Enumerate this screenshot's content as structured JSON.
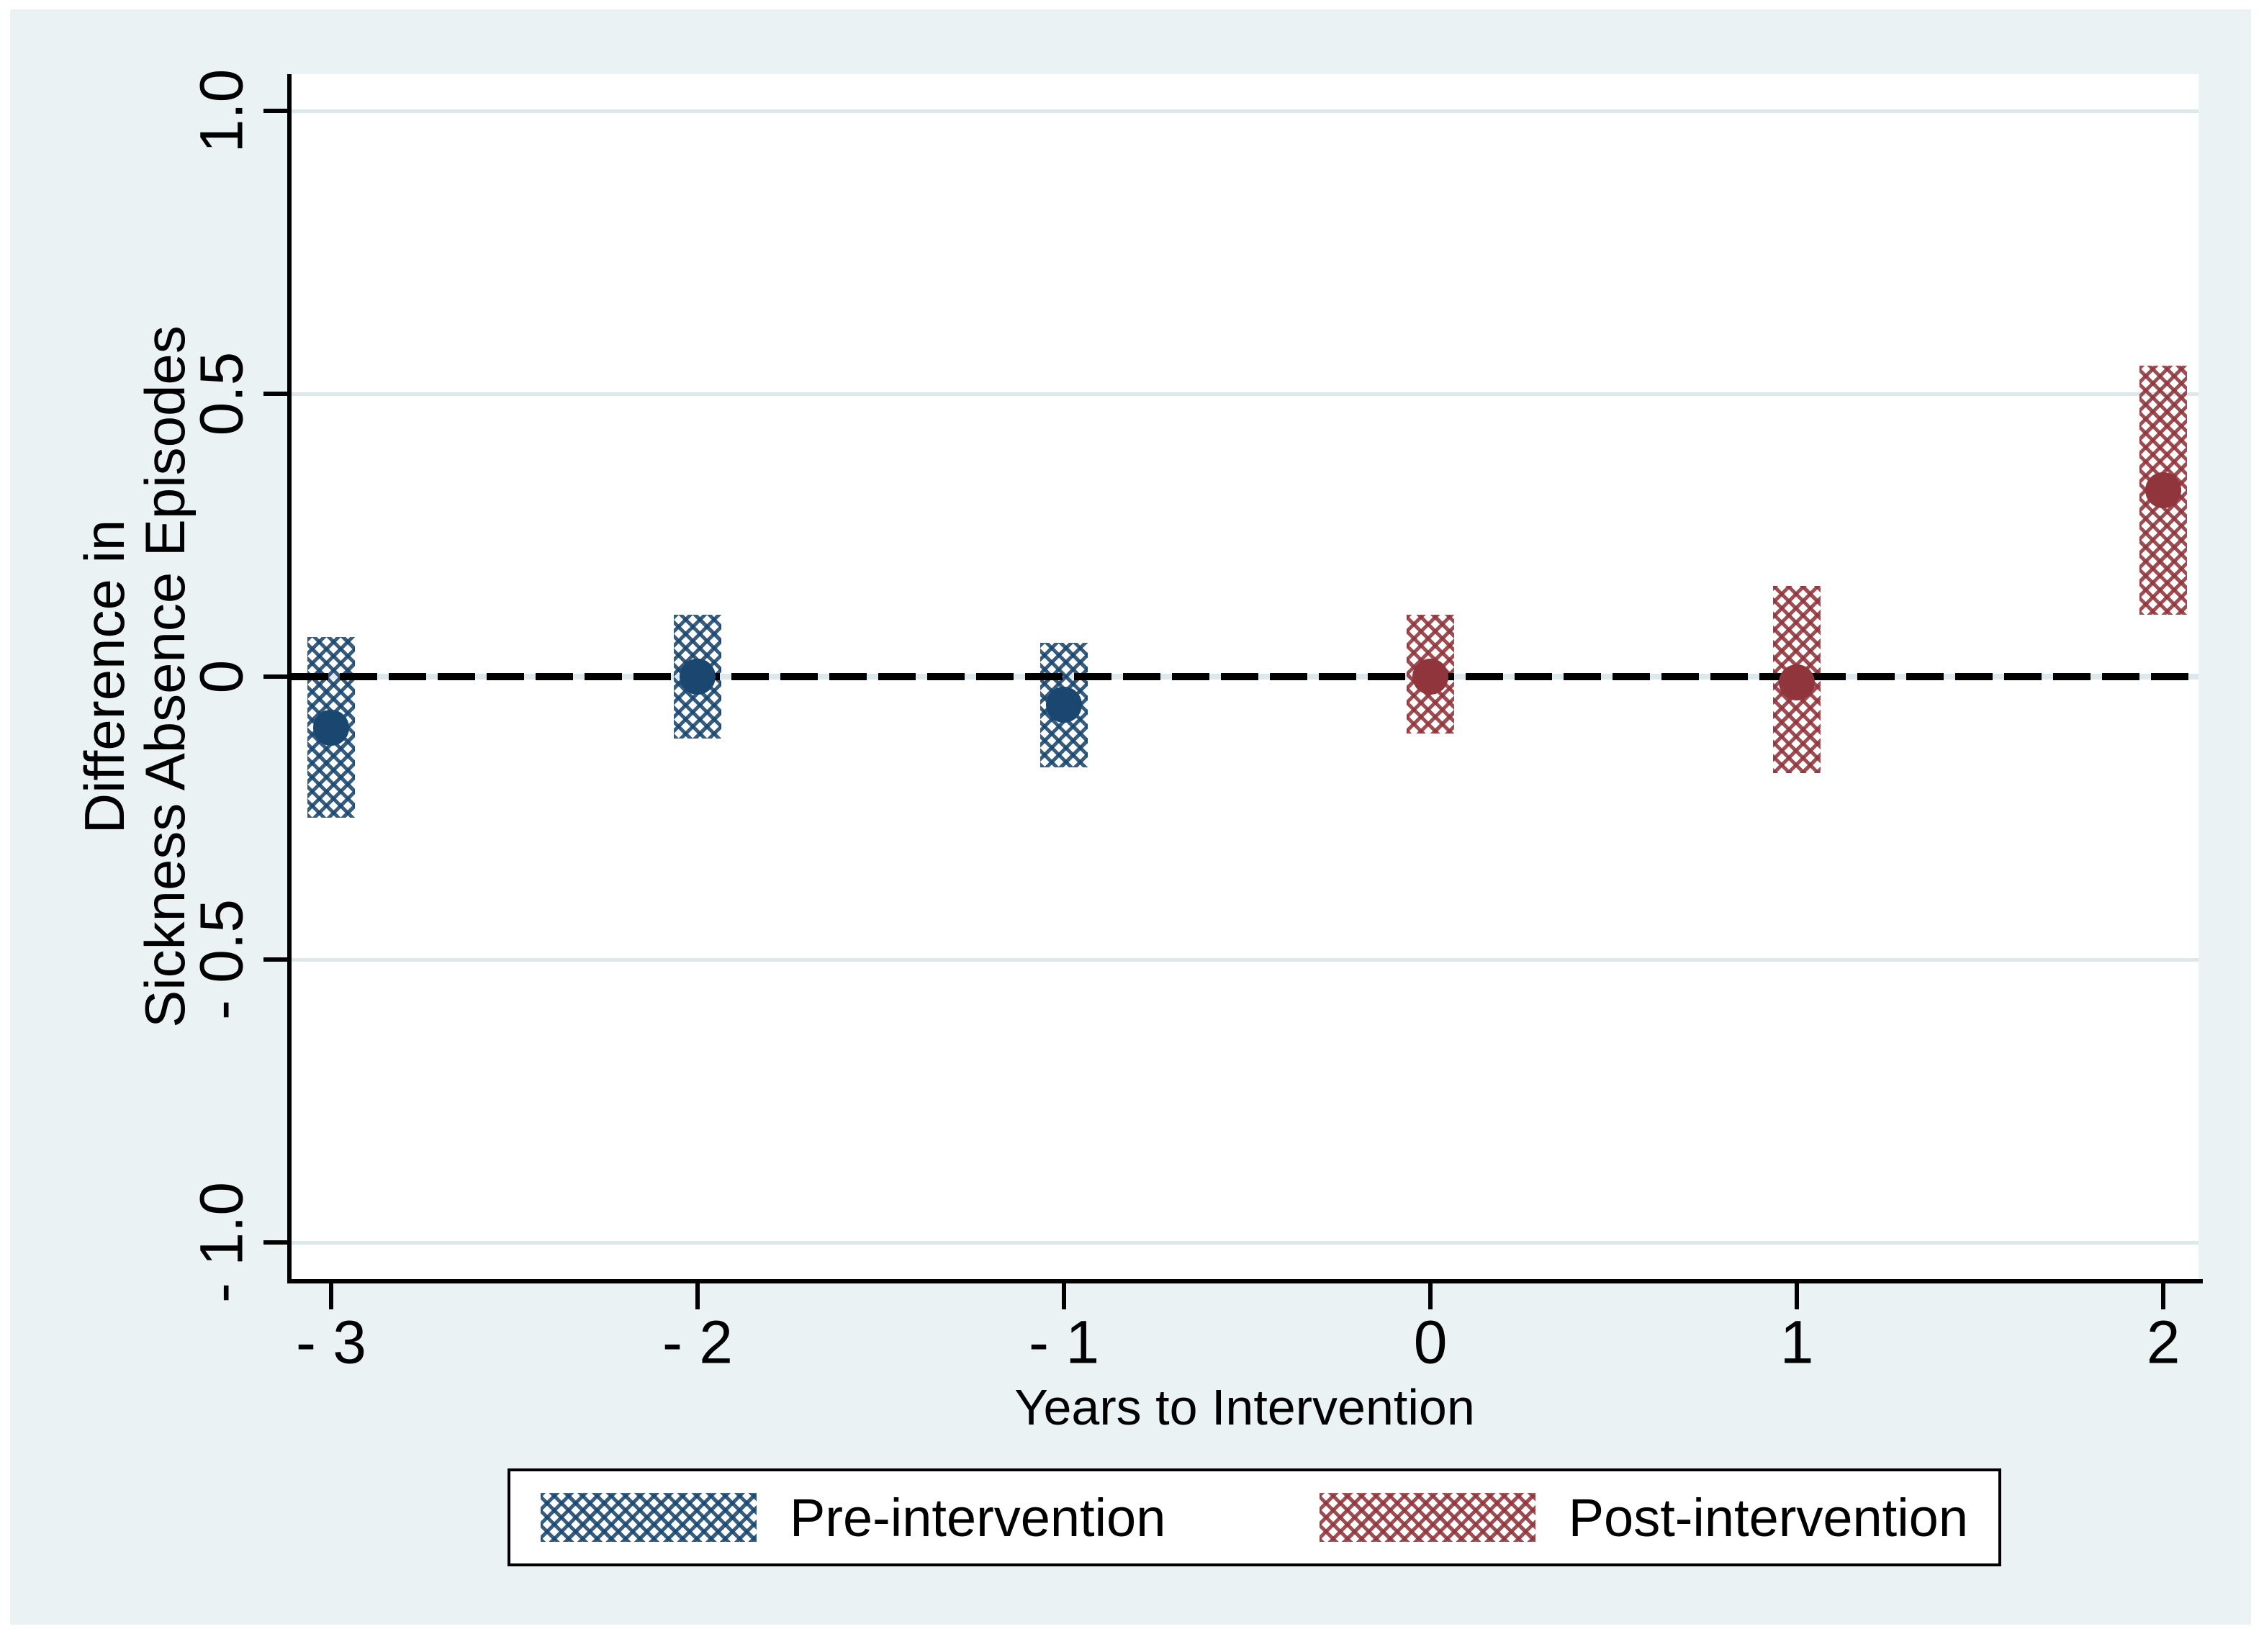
{
  "figure": {
    "background_color": "#eaf2f3",
    "plot_background_color": "#ffffff",
    "grid_color": "#dce8ec",
    "axis_color": "#000000",
    "zero_line_style": "dashed-black"
  },
  "axes": {
    "x_title": "Years to Intervention",
    "y_title_line1": "Difference in",
    "y_title_line2": "Sickness Absence Episodes"
  },
  "legend": {
    "items": [
      {
        "label": "Pre-intervention",
        "color": "#1a476f",
        "swatch": "crosshatch"
      },
      {
        "label": "Post-intervention",
        "color": "#90353b",
        "swatch": "crosshatch"
      }
    ]
  },
  "chart_data": {
    "type": "scatter",
    "subtype": "event-study estimates with confidence-interval boxes",
    "title": "",
    "xlabel": "Years to Intervention",
    "ylabel": "Difference in Sickness Absence Episodes",
    "x_range": [
      -3.11,
      2.096
    ],
    "y_range": [
      -1.065,
      1.065
    ],
    "grid": "horizontal",
    "legend_position": "bottom",
    "reference_line_y": 0,
    "xticks": [
      {
        "value": -3,
        "label": "- 3"
      },
      {
        "value": -2,
        "label": "- 2"
      },
      {
        "value": -1,
        "label": "- 1"
      },
      {
        "value": 0,
        "label": "0"
      },
      {
        "value": 1,
        "label": "1"
      },
      {
        "value": 2,
        "label": "2"
      }
    ],
    "yticks": [
      {
        "value": 1.0,
        "label": "1.0"
      },
      {
        "value": 0.5,
        "label": "0.5"
      },
      {
        "value": 0,
        "label": "0"
      },
      {
        "value": -0.5,
        "label": "- 0.5"
      },
      {
        "value": -1.0,
        "label": "- 1.0"
      }
    ],
    "series": [
      {
        "name": "Pre-intervention",
        "color": "#1a476f",
        "points": [
          {
            "x": -3,
            "estimate": -0.09,
            "ci_low": -0.25,
            "ci_high": 0.07
          },
          {
            "x": -2,
            "estimate": 0.0,
            "ci_low": -0.11,
            "ci_high": 0.11
          },
          {
            "x": -1,
            "estimate": -0.05,
            "ci_low": -0.16,
            "ci_high": 0.06
          }
        ]
      },
      {
        "name": "Post-intervention",
        "color": "#90353b",
        "points": [
          {
            "x": 0,
            "estimate": 0.0,
            "ci_low": -0.1,
            "ci_high": 0.11
          },
          {
            "x": 1,
            "estimate": -0.01,
            "ci_low": -0.17,
            "ci_high": 0.16
          },
          {
            "x": 2,
            "estimate": 0.33,
            "ci_low": 0.11,
            "ci_high": 0.55
          }
        ]
      }
    ]
  }
}
